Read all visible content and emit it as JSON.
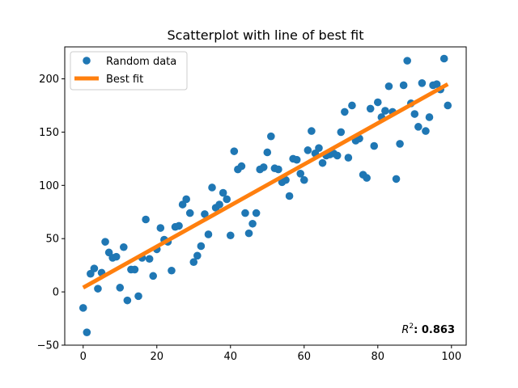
{
  "chart_data": {
    "type": "scatter",
    "title": "Scatterplot with line of best fit",
    "xlabel": "",
    "ylabel": "",
    "xlim": [
      -5,
      104
    ],
    "ylim": [
      -50,
      230
    ],
    "x_ticks": [
      0,
      20,
      40,
      60,
      80,
      100
    ],
    "y_ticks": [
      -50,
      0,
      50,
      100,
      150,
      200
    ],
    "grid": false,
    "legend": {
      "placement": "upper-left",
      "entries": [
        {
          "label": "Random data",
          "kind": "marker",
          "color": "#1f77b4"
        },
        {
          "label": "Best fit",
          "kind": "line",
          "color": "#ff7f0e"
        }
      ]
    },
    "series": [
      {
        "name": "Random data",
        "kind": "scatter",
        "color": "#1f77b4",
        "x": [
          0,
          1,
          2,
          3,
          4,
          5,
          6,
          7,
          8,
          9,
          10,
          11,
          12,
          13,
          14,
          15,
          16,
          17,
          18,
          19,
          20,
          21,
          22,
          23,
          24,
          25,
          26,
          27,
          28,
          29,
          30,
          31,
          32,
          33,
          34,
          35,
          36,
          37,
          38,
          39,
          40,
          41,
          42,
          43,
          44,
          45,
          46,
          47,
          48,
          49,
          50,
          51,
          52,
          53,
          54,
          55,
          56,
          57,
          58,
          59,
          60,
          61,
          62,
          63,
          64,
          65,
          66,
          67,
          68,
          69,
          70,
          71,
          72,
          73,
          74,
          75,
          76,
          77,
          78,
          79,
          80,
          81,
          82,
          83,
          84,
          85,
          86,
          87,
          88,
          89,
          90,
          91,
          92,
          93,
          94,
          95,
          96,
          97,
          98,
          99
        ],
        "y": [
          -15,
          -38,
          17,
          22,
          3,
          18,
          47,
          37,
          32,
          33,
          4,
          42,
          -8,
          21,
          21,
          -4,
          32,
          68,
          31,
          15,
          40,
          60,
          49,
          47,
          20,
          61,
          62,
          82,
          87,
          74,
          28,
          34,
          43,
          73,
          54,
          98,
          79,
          82,
          93,
          87,
          53,
          132,
          115,
          118,
          74,
          55,
          64,
          74,
          115,
          117,
          131,
          146,
          116,
          115,
          103,
          105,
          90,
          125,
          124,
          111,
          105,
          133,
          151,
          130,
          135,
          121,
          128,
          129,
          130,
          128,
          150,
          169,
          126,
          175,
          142,
          144,
          110,
          107,
          172,
          137,
          178,
          164,
          170,
          193,
          169,
          106,
          139,
          194,
          217,
          177,
          167,
          155,
          196,
          151,
          164,
          194,
          195,
          190,
          219,
          175
        ]
      },
      {
        "name": "Best fit",
        "kind": "line",
        "color": "#ff7f0e",
        "x": [
          0,
          99
        ],
        "y": [
          4,
          195
        ]
      }
    ],
    "annotations": [
      {
        "text_prefix": "R",
        "text_sup": "2",
        "text_bold": ": 0.863",
        "placement": "bottom-right"
      }
    ]
  }
}
